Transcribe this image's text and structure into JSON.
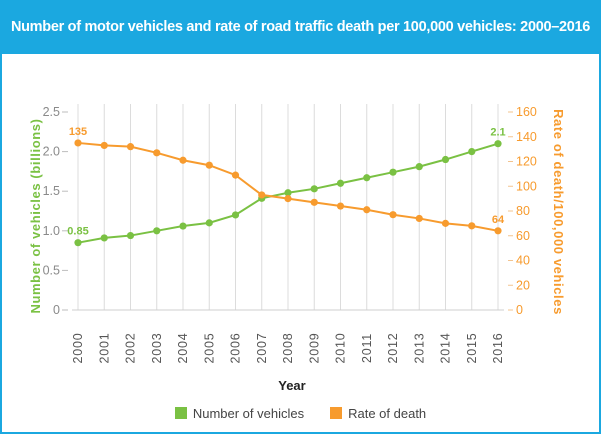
{
  "chart_data": {
    "type": "line",
    "title": "Number of motor vehicles and rate of road traffic death per 100,000 vehicles: 2000–2016",
    "xlabel": "Year",
    "categories": [
      "2000",
      "2001",
      "2002",
      "2003",
      "2004",
      "2005",
      "2006",
      "2007",
      "2008",
      "2009",
      "2010",
      "2011",
      "2012",
      "2013",
      "2014",
      "2015",
      "2016"
    ],
    "left_axis": {
      "label": "Number of vehicles (billions)",
      "ticks": [
        "0",
        "0.5",
        "1.0",
        "1.5",
        "2.0",
        "2.5"
      ],
      "range": [
        0,
        2.5
      ]
    },
    "right_axis": {
      "label": "Rate of death/100,000 vehicles",
      "ticks": [
        "0",
        "20",
        "40",
        "60",
        "80",
        "100",
        "120",
        "140",
        "160"
      ],
      "range": [
        0,
        160
      ]
    },
    "series": [
      {
        "name": "Number of vehicles",
        "color": "#7ac143",
        "axis": "left",
        "values": [
          0.85,
          0.91,
          0.94,
          1.0,
          1.06,
          1.1,
          1.2,
          1.41,
          1.48,
          1.53,
          1.6,
          1.67,
          1.74,
          1.81,
          1.9,
          2.0,
          2.1
        ]
      },
      {
        "name": "Rate of death",
        "color": "#f79b2e",
        "axis": "right",
        "values": [
          135,
          133,
          132,
          127,
          121,
          117,
          109,
          93,
          90,
          87,
          84,
          81,
          77,
          74,
          70,
          68,
          64
        ]
      }
    ],
    "data_labels": [
      {
        "series": 0,
        "index": 0,
        "text": "0.85"
      },
      {
        "series": 0,
        "index": 16,
        "text": "2.1"
      },
      {
        "series": 1,
        "index": 0,
        "text": "135"
      },
      {
        "series": 1,
        "index": 16,
        "text": "64"
      }
    ],
    "grid": "vertical"
  }
}
